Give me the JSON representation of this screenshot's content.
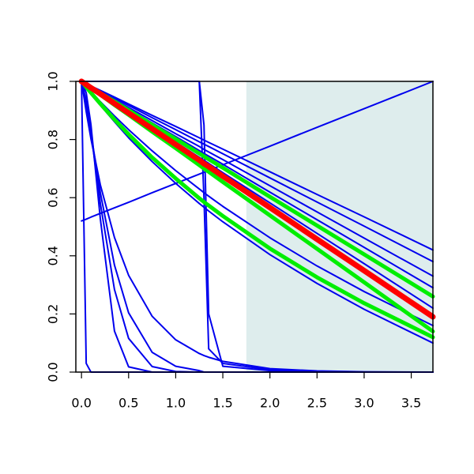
{
  "chart_data": {
    "type": "line",
    "x": [
      0,
      0.05,
      0.1,
      0.2,
      0.35,
      0.5,
      0.75,
      1,
      1.25,
      1.3,
      1.35,
      1.5,
      2,
      2.5,
      3,
      3.73
    ],
    "series": [
      {
        "color": "#0000ee",
        "values": [
          1,
          0.03,
          0,
          0,
          0,
          0,
          0,
          0,
          0,
          0,
          0,
          0,
          0,
          0,
          0,
          0
        ]
      },
      {
        "color": "#0000ee",
        "values": [
          1,
          0.961,
          0.852,
          0.527,
          0.141,
          0.018,
          0,
          0,
          0,
          0,
          0,
          0,
          0,
          0,
          0,
          0
        ]
      },
      {
        "color": "#0000ee",
        "values": [
          1,
          0.934,
          0.825,
          0.58,
          0.284,
          0.116,
          0.019,
          0.002,
          0,
          0,
          0,
          0,
          0,
          0,
          0,
          0
        ]
      },
      {
        "color": "#0000ee",
        "values": [
          1,
          0.923,
          0.822,
          0.617,
          0.368,
          0.204,
          0.068,
          0.02,
          0.005,
          0,
          0,
          0,
          0,
          0,
          0,
          0
        ]
      },
      {
        "color": "#0000ee",
        "values": [
          1,
          0.896,
          0.803,
          0.644,
          0.463,
          0.333,
          0.192,
          0.111,
          0.064,
          0.057,
          0.051,
          0.037,
          0.012,
          0.004,
          0.001,
          0
        ]
      },
      {
        "color": "#0000ee",
        "values": [
          1,
          1,
          1,
          1,
          1,
          1,
          1,
          1,
          1,
          0.6,
          0.08,
          0.03,
          0.008,
          0.002,
          0,
          0
        ]
      },
      {
        "color": "#0000ee",
        "values": [
          1,
          1,
          1,
          1,
          1,
          1,
          1,
          1,
          1,
          0.85,
          0.2,
          0.02,
          0.005,
          0.001,
          0,
          0
        ]
      },
      {
        "color": "#0000ee",
        "values": [
          0.52,
          0.526,
          0.533,
          0.546,
          0.565,
          0.584,
          0.617,
          0.649,
          0.681,
          0.687,
          0.694,
          0.713,
          0.777,
          0.842,
          0.906,
          1
        ]
      },
      {
        "color": "#0000ee",
        "values": [
          1,
          0.992,
          0.984,
          0.969,
          0.946,
          0.922,
          0.883,
          0.845,
          0.806,
          0.798,
          0.79,
          0.767,
          0.689,
          0.611,
          0.534,
          0.42
        ]
      },
      {
        "color": "#0000ee",
        "values": [
          1,
          0.992,
          0.983,
          0.967,
          0.942,
          0.917,
          0.875,
          0.834,
          0.792,
          0.784,
          0.776,
          0.751,
          0.668,
          0.585,
          0.502,
          0.38
        ]
      },
      {
        "color": "#0000ee",
        "values": [
          1,
          0.991,
          0.982,
          0.964,
          0.937,
          0.91,
          0.865,
          0.82,
          0.776,
          0.766,
          0.757,
          0.731,
          0.641,
          0.551,
          0.461,
          0.33
        ]
      },
      {
        "color": "#0000ee",
        "values": [
          1,
          0.99,
          0.981,
          0.962,
          0.933,
          0.905,
          0.857,
          0.81,
          0.762,
          0.752,
          0.743,
          0.715,
          0.619,
          0.524,
          0.429,
          0.29
        ]
      },
      {
        "color": "#0000ee",
        "values": [
          1,
          0.99,
          0.979,
          0.958,
          0.927,
          0.895,
          0.843,
          0.791,
          0.739,
          0.728,
          0.718,
          0.686,
          0.582,
          0.477,
          0.373,
          0.22
        ]
      },
      {
        "color": "#0000ee",
        "values": [
          1,
          0.982,
          0.965,
          0.93,
          0.881,
          0.834,
          0.761,
          0.693,
          0.63,
          0.617,
          0.605,
          0.57,
          0.462,
          0.365,
          0.277,
          0.16
        ]
      },
      {
        "color": "#0000ee",
        "values": [
          1,
          0.979,
          0.958,
          0.918,
          0.861,
          0.806,
          0.724,
          0.649,
          0.58,
          0.567,
          0.554,
          0.517,
          0.404,
          0.305,
          0.216,
          0.1
        ]
      },
      {
        "color": "#00ee00",
        "values": [
          1,
          0.99,
          0.98,
          0.96,
          0.931,
          0.901,
          0.851,
          0.802,
          0.752,
          0.742,
          0.732,
          0.703,
          0.603,
          0.504,
          0.405,
          0.26
        ]
      },
      {
        "color": "#00ee00",
        "values": [
          1,
          0.988,
          0.977,
          0.954,
          0.919,
          0.885,
          0.827,
          0.77,
          0.712,
          0.7,
          0.689,
          0.654,
          0.539,
          0.424,
          0.309,
          0.14
        ]
      },
      {
        "color": "#00ee00",
        "values": [
          1,
          0.98,
          0.961,
          0.923,
          0.869,
          0.818,
          0.738,
          0.666,
          0.598,
          0.585,
          0.573,
          0.537,
          0.425,
          0.326,
          0.237,
          0.12
        ]
      },
      {
        "color": "#ff0000",
        "values": [
          1,
          0.989,
          0.978,
          0.957,
          0.924,
          0.891,
          0.837,
          0.783,
          0.729,
          0.717,
          0.707,
          0.674,
          0.566,
          0.457,
          0.349,
          0.19
        ]
      }
    ],
    "shaded_region": [
      1.75,
      3.73
    ],
    "shade_color": "#deeded",
    "xlim": [
      -0.06,
      3.73
    ],
    "ylim": [
      0,
      1
    ],
    "xticks": [
      {
        "value": 0,
        "label": "0.0"
      },
      0.5,
      {
        "value": 1,
        "label": "1.0"
      },
      1.5,
      {
        "value": 2,
        "label": "2.0"
      },
      2.5,
      {
        "value": 3,
        "label": "3.0"
      },
      3.5
    ],
    "yticks": [
      {
        "value": 0,
        "label": "0.0"
      },
      0.2,
      0.4,
      0.6,
      0.8,
      {
        "value": 1,
        "label": "1.0"
      }
    ]
  }
}
